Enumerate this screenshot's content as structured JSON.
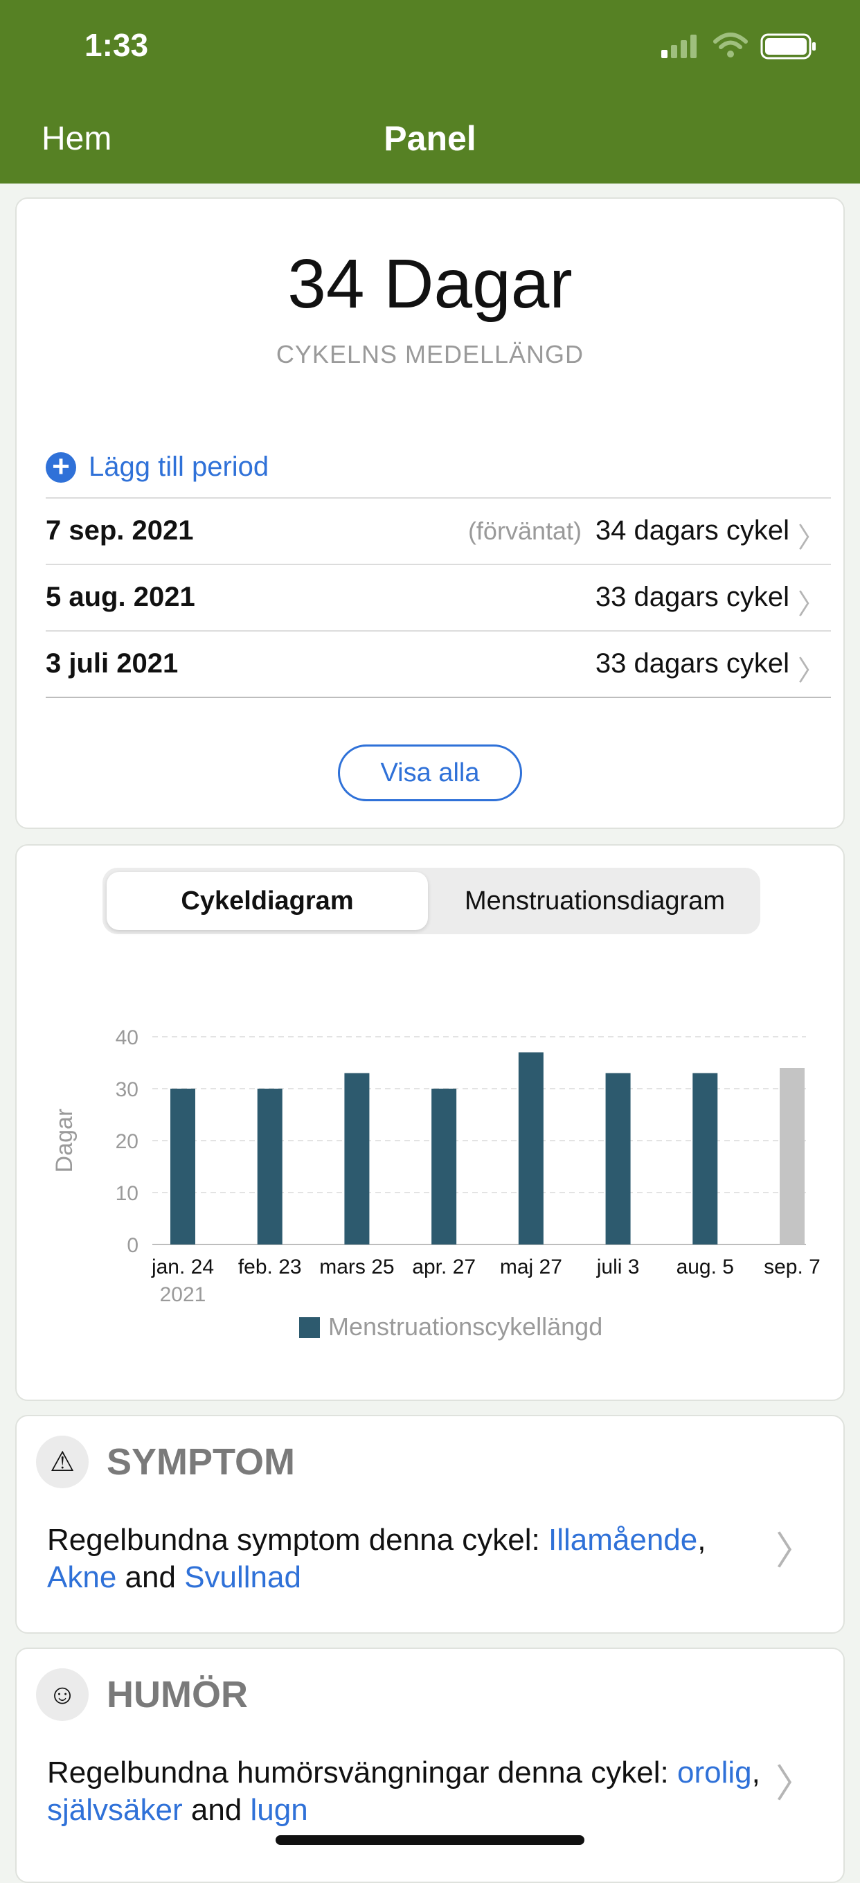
{
  "status": {
    "time": "1:33"
  },
  "nav": {
    "back": "Hem",
    "title": "Panel"
  },
  "summary": {
    "big": "34 Dagar",
    "sub": "CYKELNS MEDELLÄNGD",
    "add_label": "Lägg till period",
    "rows": [
      {
        "date": "7 sep. 2021",
        "note": "(förväntat)",
        "cycle": "34 dagars cykel"
      },
      {
        "date": "5 aug. 2021",
        "note": "",
        "cycle": "33 dagars cykel"
      },
      {
        "date": "3 juli 2021",
        "note": "",
        "cycle": "33 dagars cykel"
      }
    ],
    "show_all": "Visa alla"
  },
  "tabs": {
    "active": "Cykeldiagram",
    "inactive": "Menstruationsdiagram"
  },
  "chart_data": {
    "type": "bar",
    "categories": [
      "jan. 24",
      "feb. 23",
      "mars 25",
      "apr. 27",
      "maj 27",
      "juli 3",
      "aug. 5",
      "sep. 7"
    ],
    "year_label": "2021",
    "values": [
      30,
      30,
      33,
      30,
      37,
      33,
      33,
      34
    ],
    "expected_last": true,
    "ylabel": "Dagar",
    "yticks": [
      0,
      10,
      20,
      30,
      40
    ],
    "ylim": [
      0,
      40
    ],
    "legend": "Menstruationscykellängd",
    "colors": {
      "bar": "#2d5a6e",
      "expected": "#c4c4c4"
    }
  },
  "symptom": {
    "title": "SYMPTOM",
    "text": "Regelbundna symptom denna cykel:",
    "links": [
      "Illamående",
      "Akne",
      "Svullnad"
    ],
    "sep1": ",",
    "and": "and"
  },
  "mood": {
    "title": "HUMÖR",
    "text": "Regelbundna humörsvängningar denna cykel:",
    "links": [
      "orolig",
      "självsäker",
      "lugn"
    ],
    "sep1": ",",
    "and": "and"
  }
}
